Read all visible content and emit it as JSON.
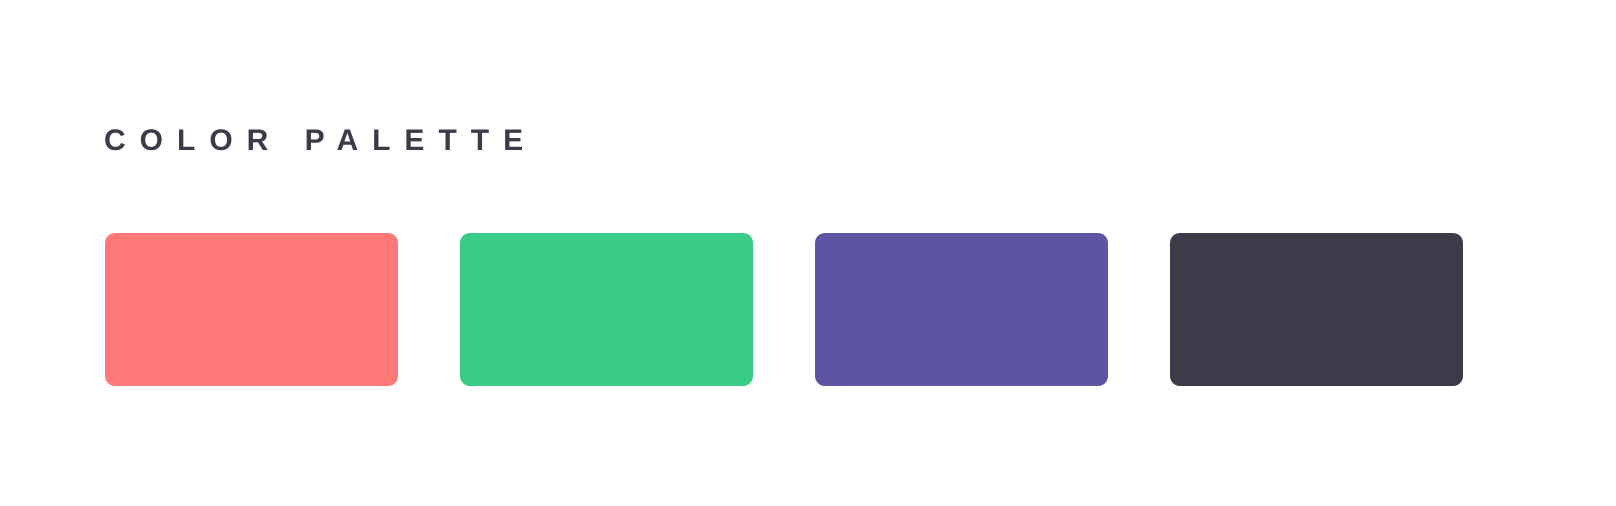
{
  "title": "COLOR PALETTE",
  "swatches": [
    {
      "color": "#ff7777"
    },
    {
      "color": "#38cc88"
    },
    {
      "color": "#5d55a2"
    },
    {
      "color": "#3d3b4a"
    }
  ]
}
